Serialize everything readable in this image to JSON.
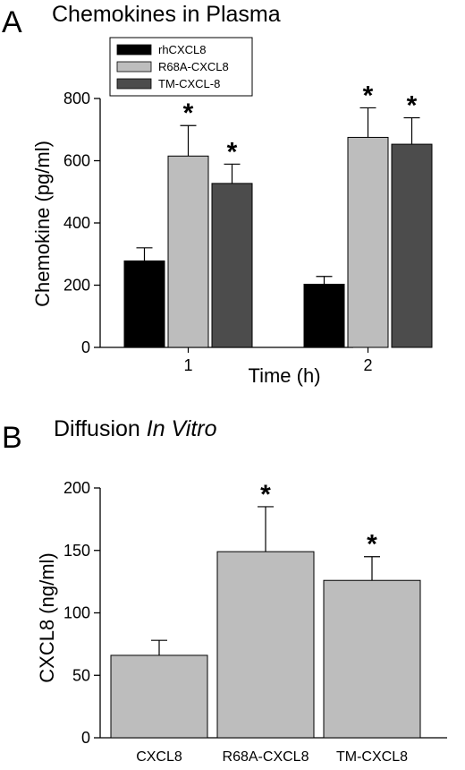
{
  "panel_a": {
    "letter": "A",
    "title": "Chemokines in Plasma"
  },
  "panel_b": {
    "letter": "B",
    "title_prefix": "Diffusion ",
    "title_italic": "In Vitro"
  },
  "chart_data": [
    {
      "type": "bar",
      "title": "Chemokines in Plasma",
      "xlabel": "Time (h)",
      "ylabel": "Chemokine (pg/ml)",
      "ylim": [
        0,
        800
      ],
      "yticks": [
        0,
        200,
        400,
        600,
        800
      ],
      "categories": [
        "1",
        "2"
      ],
      "series": [
        {
          "name": "rhCXCL8",
          "color": "#000000",
          "values": [
            278,
            203
          ],
          "errors": [
            42,
            25
          ],
          "significant": [
            false,
            false
          ]
        },
        {
          "name": "R68A-CXCL8",
          "color": "#bdbdbd",
          "values": [
            615,
            675
          ],
          "errors": [
            98,
            95
          ],
          "significant": [
            true,
            true
          ]
        },
        {
          "name": "TM-CXCL-8",
          "color": "#4c4c4c",
          "values": [
            527,
            653
          ],
          "errors": [
            62,
            85
          ],
          "significant": [
            true,
            true
          ]
        }
      ],
      "legend_position": "top-left",
      "significance_marker": "*"
    },
    {
      "type": "bar",
      "title": "Diffusion In Vitro",
      "xlabel": "",
      "ylabel": "CXCL8 (ng/ml)",
      "ylim": [
        0,
        200
      ],
      "yticks": [
        0,
        50,
        100,
        150,
        200
      ],
      "categories": [
        "CXCL8",
        "R68A-CXCL8",
        "TM-CXCL8"
      ],
      "values": [
        66,
        149,
        126
      ],
      "errors": [
        12,
        36,
        19
      ],
      "significant": [
        false,
        true,
        true
      ],
      "color": "#bdbdbd",
      "significance_marker": "*"
    }
  ]
}
